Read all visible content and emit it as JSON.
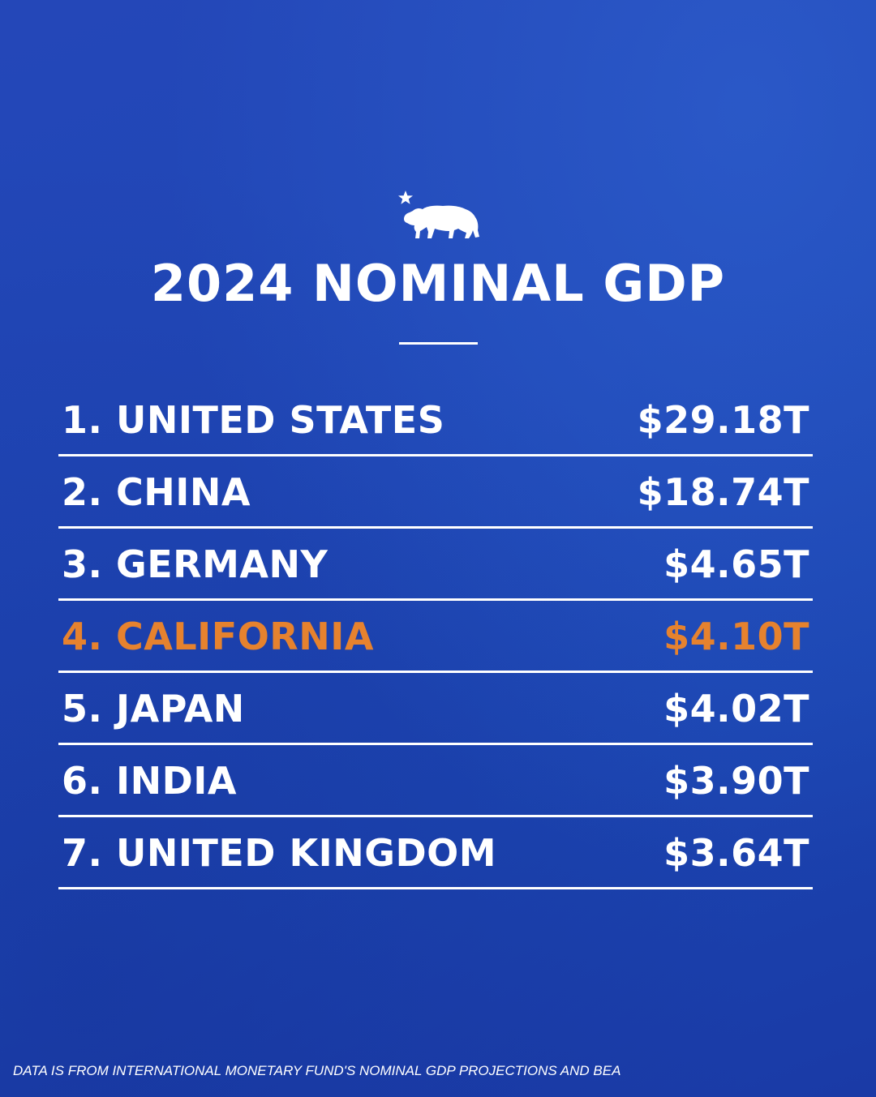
{
  "colors": {
    "background": "#1f47b6",
    "text": "#ffffff",
    "highlight": "#e6822e"
  },
  "logo": {
    "icon": "california-bear-star-icon"
  },
  "chart_data": {
    "type": "table",
    "title": "2024 NOMINAL GDP",
    "rows": [
      {
        "rank": "1.",
        "name": "UNITED STATES",
        "label": "1. UNITED STATES",
        "value": 29.18,
        "display": "$29.18T",
        "highlight": false
      },
      {
        "rank": "2.",
        "name": "CHINA",
        "label": "2. CHINA",
        "value": 18.74,
        "display": "$18.74T",
        "highlight": false
      },
      {
        "rank": "3.",
        "name": "GERMANY",
        "label": "3. GERMANY",
        "value": 4.65,
        "display": "$4.65T",
        "highlight": false
      },
      {
        "rank": "4.",
        "name": "CALIFORNIA",
        "label": "4. CALIFORNIA",
        "value": 4.1,
        "display": "$4.10T",
        "highlight": true
      },
      {
        "rank": "5.",
        "name": "JAPAN",
        "label": "5. JAPAN",
        "value": 4.02,
        "display": "$4.02T",
        "highlight": false
      },
      {
        "rank": "6.",
        "name": "INDIA",
        "label": "6. INDIA",
        "value": 3.9,
        "display": "$3.90T",
        "highlight": false
      },
      {
        "rank": "7.",
        "name": "UNITED KINGDOM",
        "label": "7. UNITED KINGDOM",
        "value": 3.64,
        "display": "$3.64T",
        "highlight": false
      }
    ]
  },
  "footnote": "DATA IS FROM INTERNATIONAL MONETARY FUND'S NOMINAL GDP PROJECTIONS AND BEA"
}
